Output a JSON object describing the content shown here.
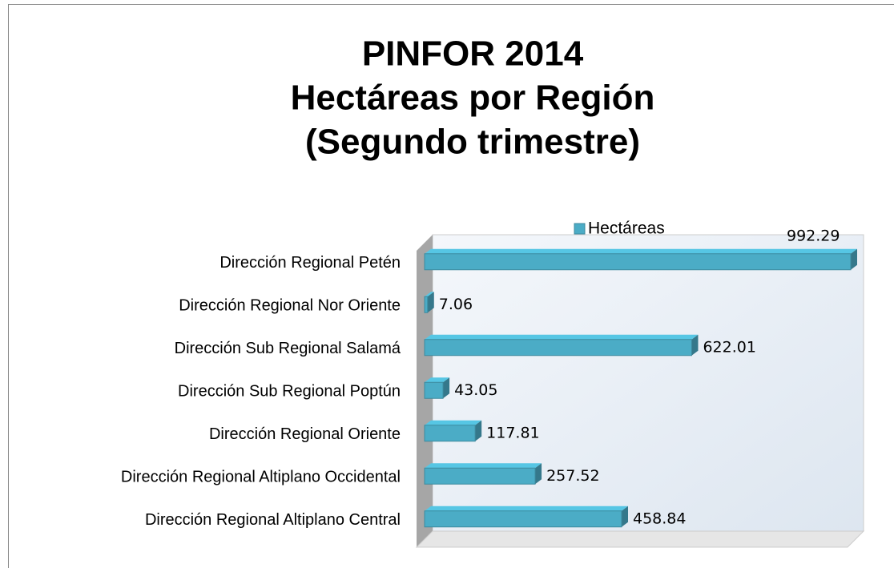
{
  "chart_data": {
    "type": "bar",
    "orientation": "horizontal",
    "title": [
      "PINFOR 2014",
      "Hectáreas por Región",
      "(Segundo trimestre)"
    ],
    "categories": [
      "Dirección Regional Petén",
      "Dirección Regional Nor Oriente",
      "Dirección Sub Regional Salamá",
      "Dirección Sub Regional Poptún",
      "Dirección Regional Oriente",
      "Dirección Regional Altiplano Occidental",
      "Dirección Regional Altiplano Central"
    ],
    "series": [
      {
        "name": "Hectáreas",
        "color": "#4bacc6",
        "values": [
          992.29,
          7.06,
          622.01,
          43.05,
          117.81,
          257.52,
          458.84
        ]
      }
    ],
    "legend": "top"
  }
}
